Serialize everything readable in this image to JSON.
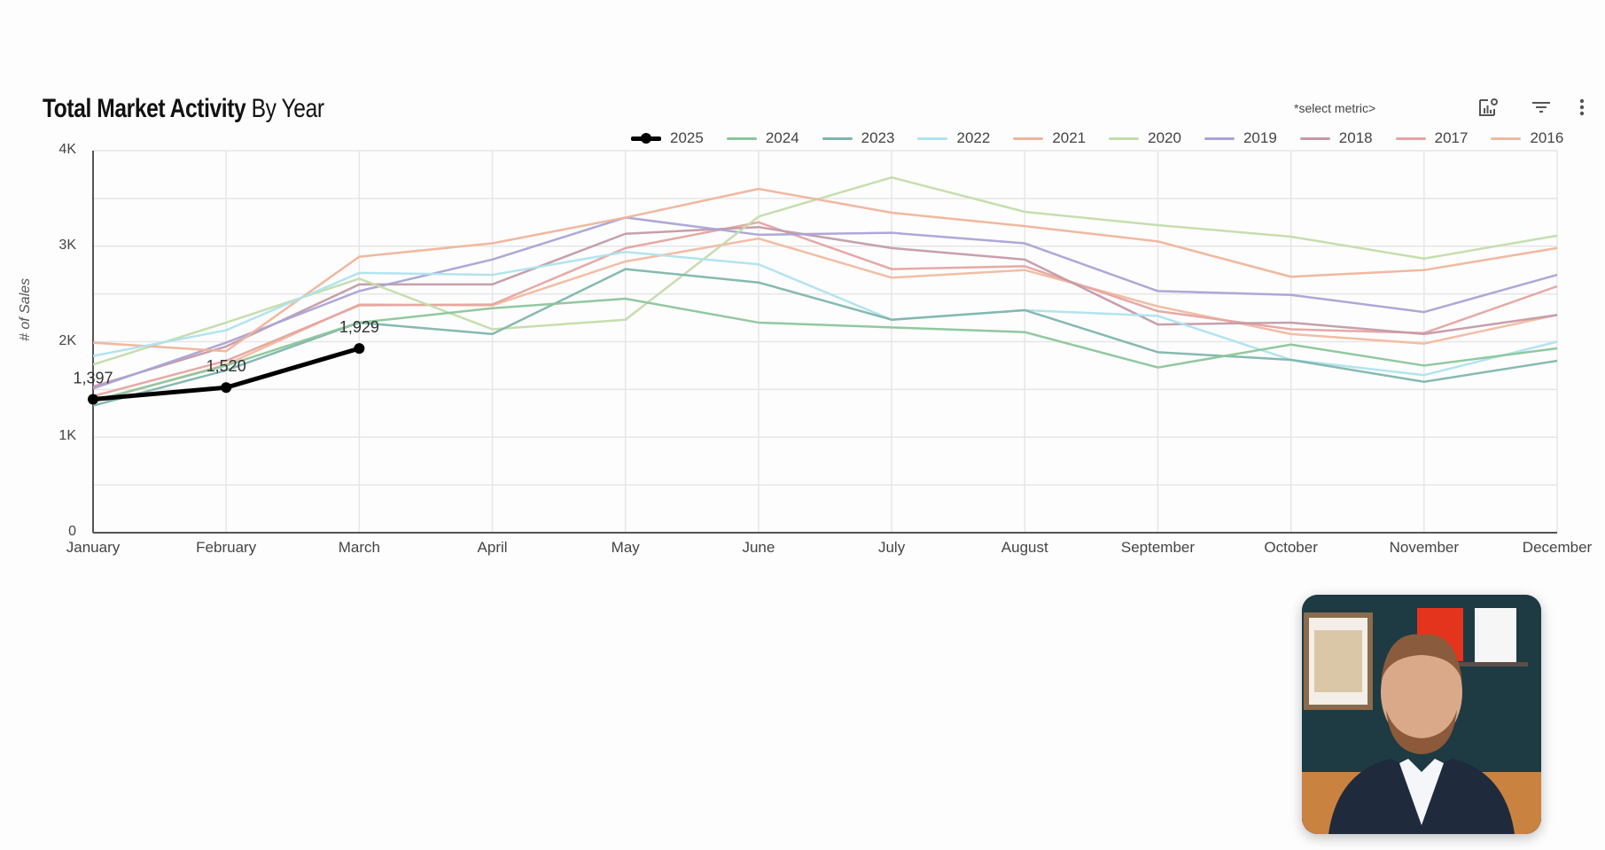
{
  "header": {
    "title_bold": "Total Market Activity",
    "title_light": "By Year",
    "select_metric": "*select metric>",
    "icons": [
      "chart-settings-icon",
      "filter-icon",
      "more-vert-icon"
    ]
  },
  "chart_data": {
    "type": "line",
    "title": "Total Market Activity By Year",
    "xlabel": "",
    "ylabel": "# of Sales",
    "ylim": [
      0,
      4000
    ],
    "yticks": [
      "0",
      "1K",
      "2K",
      "3K",
      "4K"
    ],
    "grid": true,
    "legend_position": "top-right",
    "categories": [
      "January",
      "February",
      "March",
      "April",
      "May",
      "June",
      "July",
      "August",
      "September",
      "October",
      "November",
      "December"
    ],
    "series": [
      {
        "name": "2025",
        "color": "#000000",
        "width": 5,
        "markers": true,
        "values": [
          1397,
          1520,
          1929
        ],
        "labels": [
          "1,397",
          "1,520",
          "1,929"
        ]
      },
      {
        "name": "2024",
        "color": "#8cc59a",
        "values": [
          1380,
          1750,
          2200,
          2350,
          2450,
          2200,
          2150,
          2100,
          1730,
          1970,
          1750,
          1930
        ]
      },
      {
        "name": "2023",
        "color": "#7fb5ad",
        "values": [
          1330,
          1700,
          2200,
          2080,
          2760,
          2620,
          2230,
          2330,
          1890,
          1810,
          1580,
          1800
        ]
      },
      {
        "name": "2022",
        "color": "#aee3ee",
        "values": [
          1850,
          2120,
          2720,
          2700,
          2940,
          2810,
          2230,
          2330,
          2270,
          1810,
          1650,
          2000
        ]
      },
      {
        "name": "2021",
        "color": "#f0b49a",
        "values": [
          1990,
          1900,
          2890,
          3030,
          3300,
          3600,
          3350,
          3210,
          3050,
          2680,
          2750,
          2980
        ]
      },
      {
        "name": "2020",
        "color": "#c3dcaa",
        "values": [
          1760,
          2200,
          2660,
          2130,
          2230,
          3310,
          3720,
          3360,
          3220,
          3100,
          2870,
          3110
        ]
      },
      {
        "name": "2019",
        "color": "#a9a3d6",
        "values": [
          1510,
          1990,
          2530,
          2860,
          3300,
          3120,
          3140,
          3030,
          2530,
          2490,
          2310,
          2700
        ]
      },
      {
        "name": "2018",
        "color": "#c49aa8",
        "values": [
          1530,
          1950,
          2600,
          2600,
          3130,
          3200,
          2980,
          2860,
          2180,
          2200,
          2080,
          2280
        ]
      },
      {
        "name": "2017",
        "color": "#e5a4a0",
        "values": [
          1430,
          1800,
          2380,
          2390,
          2980,
          3250,
          2760,
          2790,
          2320,
          2130,
          2090,
          2580
        ]
      },
      {
        "name": "2016",
        "color": "#f2b9a0",
        "values": [
          1370,
          1760,
          2390,
          2380,
          2840,
          3080,
          2670,
          2750,
          2370,
          2080,
          1980,
          2280
        ]
      }
    ]
  },
  "video_overlay": {
    "description": "presenter webcam"
  }
}
